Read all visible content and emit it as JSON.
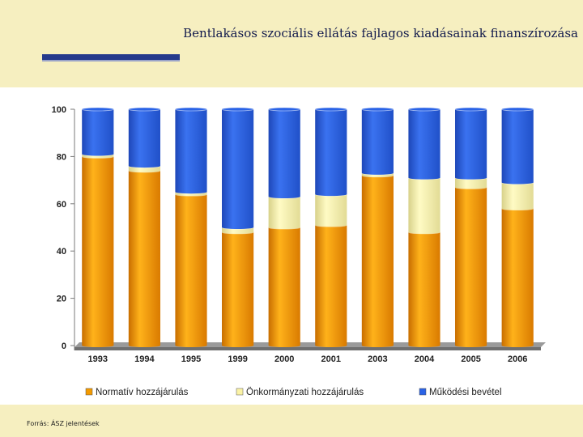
{
  "slide": {
    "title": "Bentlakásos szociális ellátás fajlagos kiadásainak finanszírozása",
    "source": "Forrás: ÁSZ jelentések"
  },
  "chart_data": {
    "type": "bar",
    "stacked": true,
    "title": "",
    "xlabel": "",
    "ylabel": "",
    "ylim": [
      0,
      100
    ],
    "yticks": [
      0,
      20,
      40,
      60,
      80,
      100
    ],
    "categories": [
      "1993",
      "1994",
      "1995",
      "1999",
      "2000",
      "2001",
      "2003",
      "2004",
      "2005",
      "2006"
    ],
    "series": [
      {
        "name": "Normatív hozzájárulás",
        "color": "#f39a00",
        "values": [
          80,
          74,
          64,
          48,
          50,
          51,
          72,
          48,
          67,
          58
        ]
      },
      {
        "name": "Önkormányzati hozzájárulás",
        "color": "#fbf3a6",
        "values": [
          1,
          2,
          1,
          2,
          13,
          13,
          1,
          23,
          4,
          11
        ]
      },
      {
        "name": "Működési bevétel",
        "color": "#2a63e6",
        "values": [
          19,
          24,
          35,
          50,
          37,
          36,
          27,
          29,
          29,
          31
        ]
      }
    ],
    "legend_position": "bottom"
  }
}
